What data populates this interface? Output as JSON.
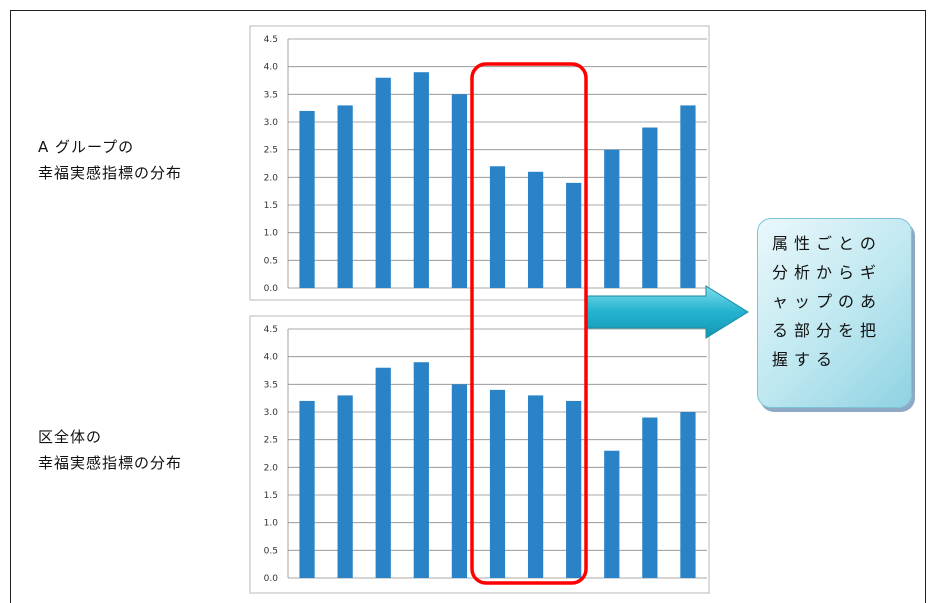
{
  "labels": {
    "group_a_line1": "A グループの",
    "group_a_line2": "幸福実感指標の分布",
    "overall_line1": "区全体の",
    "overall_line2": "幸福実感指標の分布"
  },
  "callout": {
    "text": "属性ごとの分析からギャップのある部分を把握する"
  },
  "colors": {
    "bar": "#2a83c6",
    "highlight_box": "#ff0000",
    "arrow": "#22b3d0"
  },
  "chart_data": [
    {
      "type": "bar",
      "title": "",
      "categories": [
        "",
        "",
        "",
        "",
        "",
        "",
        "",
        "",
        "",
        "",
        ""
      ],
      "values": [
        3.2,
        3.3,
        3.8,
        3.9,
        3.5,
        2.2,
        2.1,
        1.9,
        2.5,
        2.9,
        3.3
      ],
      "ylim": [
        0,
        4.5
      ],
      "yticks": [
        "0.0",
        "0.5",
        "1.0",
        "1.5",
        "2.0",
        "2.5",
        "3.0",
        "3.5",
        "4.0",
        "4.5"
      ],
      "grid": true
    },
    {
      "type": "bar",
      "title": "",
      "categories": [
        "",
        "",
        "",
        "",
        "",
        "",
        "",
        "",
        "",
        "",
        ""
      ],
      "values": [
        3.2,
        3.3,
        3.8,
        3.9,
        3.5,
        3.4,
        3.3,
        3.2,
        2.3,
        2.9,
        3.0
      ],
      "ylim": [
        0,
        4.5
      ],
      "yticks": [
        "0.0",
        "0.5",
        "1.0",
        "1.5",
        "2.0",
        "2.5",
        "3.0",
        "3.5",
        "4.0",
        "4.5"
      ],
      "grid": true
    }
  ],
  "highlight": {
    "categories_index_range": [
      5,
      7
    ]
  }
}
